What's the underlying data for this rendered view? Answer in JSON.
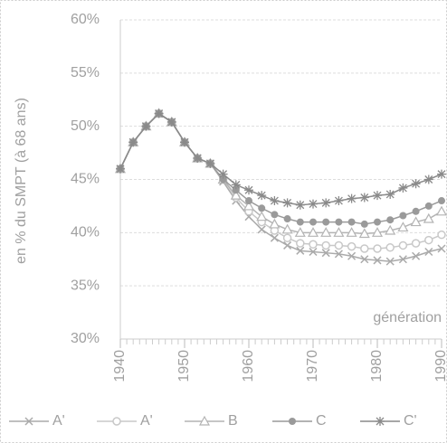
{
  "chart_data": {
    "type": "line",
    "y_label": "en % du SMPT (à 68 ans)",
    "annotation": "génération",
    "x": [
      1940,
      1942,
      1944,
      1946,
      1948,
      1950,
      1952,
      1954,
      1956,
      1958,
      1960,
      1962,
      1964,
      1966,
      1968,
      1970,
      1972,
      1974,
      1976,
      1978,
      1980,
      1982,
      1984,
      1986,
      1988,
      1990
    ],
    "xlim": [
      1940,
      1990
    ],
    "xticks": [
      1940,
      1950,
      1960,
      1970,
      1980,
      1990
    ],
    "ylim": [
      30,
      60
    ],
    "yticks": [
      {
        "value": 30,
        "label": "30%"
      },
      {
        "value": 35,
        "label": "35%"
      },
      {
        "value": 40,
        "label": "40%"
      },
      {
        "value": 45,
        "label": "45%"
      },
      {
        "value": 50,
        "label": "50%"
      },
      {
        "value": 55,
        "label": "55%"
      },
      {
        "value": 60,
        "label": "60%"
      }
    ],
    "grid": true,
    "legend": "bottom",
    "series": [
      {
        "name": "A'",
        "color": "#aaaaaa",
        "marker": "x",
        "values": [
          46,
          48.5,
          50,
          51.2,
          50.4,
          48.5,
          47,
          46.5,
          44.8,
          43,
          41.5,
          40.3,
          39.5,
          38.8,
          38.3,
          38.2,
          38.1,
          38,
          37.8,
          37.5,
          37.4,
          37.3,
          37.5,
          37.8,
          38.2,
          38.5
        ]
      },
      {
        "name": "A'",
        "color": "#c8c8c8",
        "marker": "circle",
        "values": [
          46,
          48.5,
          50,
          51.2,
          50.4,
          48.5,
          47,
          46.5,
          45,
          43.3,
          42,
          41,
          40.2,
          39.5,
          39,
          38.9,
          38.8,
          38.8,
          38.7,
          38.5,
          38.5,
          38.6,
          38.8,
          39,
          39.3,
          39.8
        ]
      },
      {
        "name": "B",
        "color": "#b4b4b4",
        "marker": "triangle",
        "values": [
          46,
          48.5,
          50,
          51.2,
          50.4,
          48.5,
          47,
          46.5,
          45,
          43.5,
          42.5,
          41.5,
          40.8,
          40.3,
          40,
          40,
          40,
          40,
          40,
          39.9,
          40,
          40.2,
          40.5,
          41,
          41.3,
          42
        ]
      },
      {
        "name": "C",
        "color": "#9a9a9a",
        "marker": "dot",
        "values": [
          46,
          48.5,
          50,
          51.2,
          50.4,
          48.5,
          47,
          46.5,
          45,
          44,
          43,
          42.3,
          41.7,
          41.3,
          41,
          41,
          41,
          41,
          41,
          40.8,
          41,
          41.2,
          41.6,
          42,
          42.5,
          43
        ]
      },
      {
        "name": "C'",
        "color": "#8a8a8a",
        "marker": "star",
        "values": [
          46,
          48.5,
          50,
          51.2,
          50.4,
          48.5,
          47,
          46.5,
          45.5,
          44.5,
          44,
          43.5,
          43,
          42.8,
          42.6,
          42.7,
          42.8,
          43,
          43.2,
          43.3,
          43.5,
          43.6,
          44.2,
          44.6,
          45,
          45.5
        ]
      }
    ]
  }
}
